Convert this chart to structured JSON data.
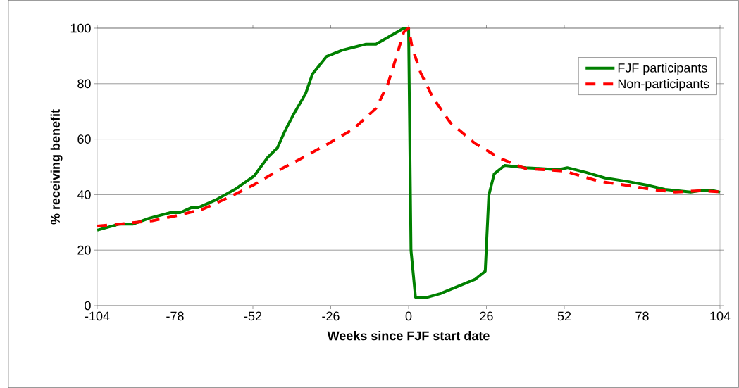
{
  "chart_data": {
    "type": "line",
    "xlabel": "Weeks since FJF start date",
    "ylabel": "% receiving benefit",
    "xlim": [
      -104,
      104
    ],
    "xticks": [
      -104,
      -78,
      -52,
      -26,
      0,
      26,
      52,
      78,
      104
    ],
    "ylim": [
      0,
      100
    ],
    "yticks": [
      0,
      20,
      40,
      60,
      80,
      100
    ],
    "grid": "y",
    "legend": "top right",
    "series": [
      {
        "name": "FJF participants",
        "color": "#008000",
        "line_style": "solid",
        "x": [
          -104,
          -96.6,
          -92,
          -86.6,
          -79.6,
          -76.3,
          -72.6,
          -70.3,
          -64,
          -57.7,
          -51.6,
          -47,
          -43.8,
          -41.4,
          -38.4,
          -34.4,
          -32.1,
          -27.4,
          -22.1,
          -14.4,
          -10.9,
          -1.6,
          0,
          0.8,
          2.3,
          6.3,
          10.5,
          17.5,
          22.1,
          25.6,
          26.8,
          28.6,
          32.1,
          39.1,
          50,
          53,
          59.3,
          65.6,
          73.3,
          79.6,
          85.6,
          94.2,
          97.3,
          101.9,
          104
        ],
        "values": [
          27.2,
          29.4,
          29.4,
          31.5,
          33.5,
          33.5,
          35.3,
          35.3,
          38.3,
          42.1,
          46.7,
          53.5,
          56.9,
          62.7,
          69,
          76.4,
          83.5,
          89.8,
          92.1,
          94.2,
          94.2,
          100,
          100,
          20,
          3,
          3,
          4.3,
          7.4,
          9.4,
          12.4,
          39.8,
          47.5,
          50.5,
          49.7,
          49,
          49.7,
          48,
          46,
          44.7,
          43.4,
          41.9,
          40.9,
          41.4,
          41.4,
          40.9
        ]
      },
      {
        "name": "Non-participants",
        "color": "#ff0000",
        "line_style": "dashed",
        "x": [
          -104,
          -96.5,
          -85.6,
          -77,
          -68.7,
          -60.5,
          -51.9,
          -43.5,
          -35.4,
          -26.8,
          -18.6,
          -10.9,
          -7,
          -4.2,
          -1.6,
          0,
          1.2,
          4,
          8.1,
          13.9,
          22,
          30.7,
          39,
          52,
          63.9,
          72.5,
          81,
          89,
          97.3,
          104
        ],
        "values": [
          28.7,
          29.4,
          30.6,
          32.5,
          34.8,
          38.8,
          43.4,
          48.7,
          53.3,
          58.4,
          63.5,
          71.1,
          79.6,
          89.3,
          98.6,
          100,
          93,
          84,
          75,
          66,
          58.6,
          53,
          49.4,
          48.5,
          44.7,
          43.4,
          41.9,
          40.9,
          41.4,
          41
        ]
      }
    ]
  }
}
